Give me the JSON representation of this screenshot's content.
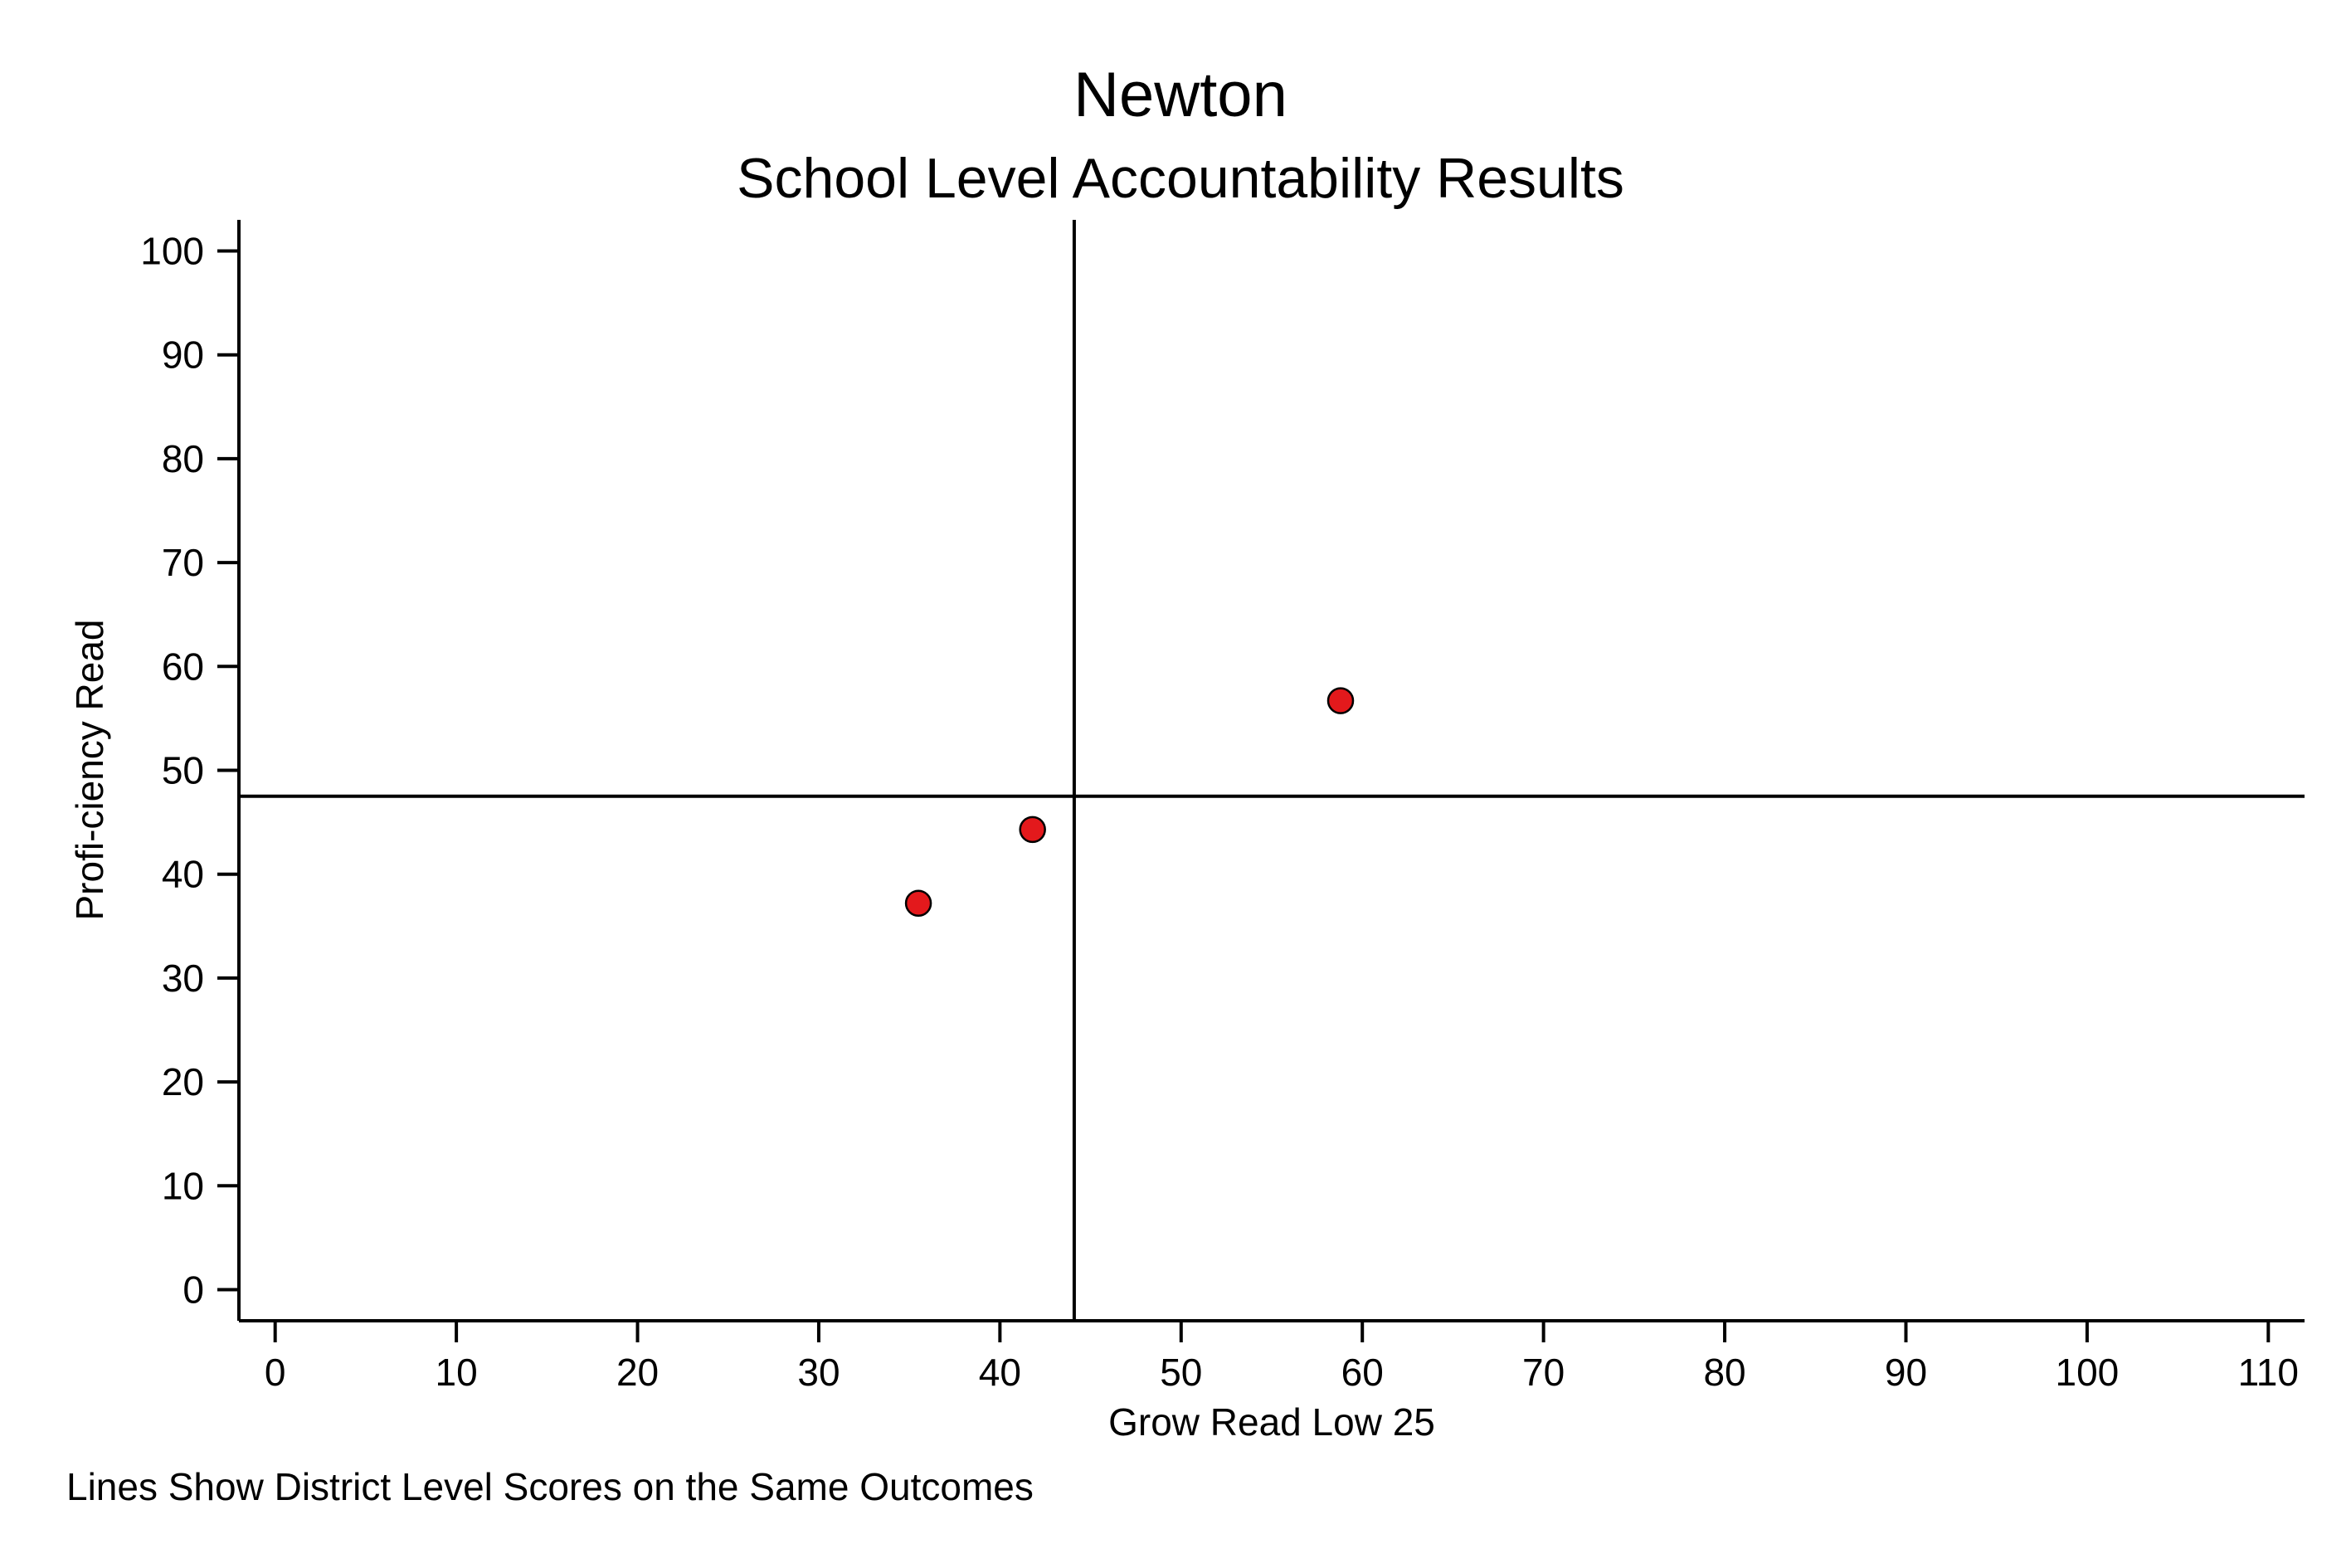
{
  "chart_data": {
    "type": "scatter",
    "title": "Newton",
    "subtitle": "School Level Accountability Results",
    "xlabel": "Grow Read Low 25",
    "ylabel": "Profi-ciency Read",
    "xlim": [
      -2,
      112
    ],
    "ylim": [
      -3,
      103
    ],
    "x_ticks": [
      0,
      10,
      20,
      30,
      40,
      50,
      60,
      70,
      80,
      90,
      100,
      110
    ],
    "y_ticks": [
      0,
      10,
      20,
      30,
      40,
      50,
      60,
      70,
      80,
      90,
      100
    ],
    "points": [
      {
        "x": 35.5,
        "y": 37.2
      },
      {
        "x": 41.8,
        "y": 44.3
      },
      {
        "x": 58.8,
        "y": 56.7
      }
    ],
    "reference_lines": {
      "x": 44.1,
      "y": 47.5
    },
    "marker_color": "#e3191c",
    "grid": false,
    "note": "Lines Show District Level Scores on the Same Outcomes"
  }
}
